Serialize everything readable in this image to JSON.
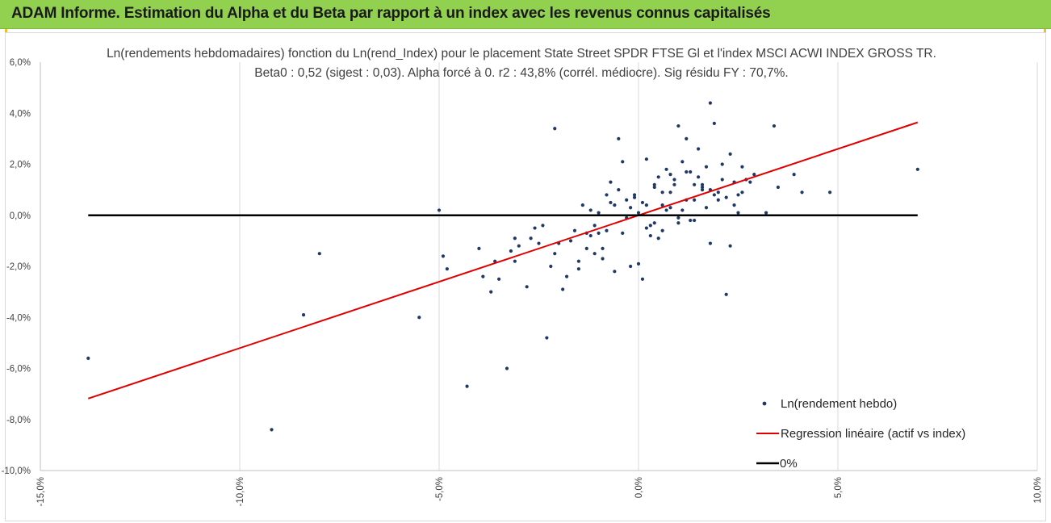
{
  "header": {
    "title": "ADAM Informe. Estimation du Alpha et du Beta par rapport à un index avec les revenus connus capitalisés"
  },
  "colors": {
    "banner": "#92d050",
    "points": "#1f3864",
    "regression": "#e00000",
    "zero_line": "#000000",
    "grid": "#d9d9d9"
  },
  "chart_data": {
    "type": "scatter",
    "title": [
      "Ln(rendements hebdomadaires) fonction du Ln(rend_Index) pour le placement State Street SPDR FTSE Gl et l'index MSCI  ACWI INDEX GROSS TR.",
      "Beta0 : 0,52 (sigest : 0,03).  Alpha forcé à 0. r2 : 43,8% (corrél. médiocre). Sig résidu FY : 70,7%."
    ],
    "xlabel": "",
    "ylabel": "",
    "xlim": [
      -0.15,
      0.1
    ],
    "ylim": [
      -0.1,
      0.06
    ],
    "x_ticks": [
      -0.15,
      -0.1,
      -0.05,
      0.0,
      0.05,
      0.1
    ],
    "x_tick_labels": [
      "-15,0%",
      "-10,0%",
      "-5,0%",
      "0,0%",
      "5,0%",
      "10,0%"
    ],
    "y_ticks": [
      -0.1,
      -0.08,
      -0.06,
      -0.04,
      -0.02,
      0.0,
      0.02,
      0.04,
      0.06
    ],
    "y_tick_labels": [
      "-10,0%",
      "-8,0%",
      "-6,0%",
      "-4,0%",
      "-2,0%",
      "0,0%",
      "2,0%",
      "4,0%",
      "6,0%"
    ],
    "grid": "vertical",
    "legend_position": "bottom-right",
    "legend": [
      "Ln(rendement hebdo)",
      "Regression linéaire (actif vs index)",
      "0%"
    ],
    "series": [
      {
        "name": "Ln(rendement hebdo)",
        "type": "scatter",
        "x": [
          -0.138,
          -0.092,
          -0.084,
          -0.08,
          -0.055,
          -0.05,
          -0.049,
          -0.048,
          -0.043,
          -0.04,
          -0.039,
          -0.037,
          -0.036,
          -0.035,
          -0.033,
          -0.032,
          -0.031,
          -0.03,
          -0.028,
          -0.027,
          -0.026,
          -0.025,
          -0.024,
          -0.023,
          -0.022,
          -0.021,
          -0.02,
          -0.019,
          -0.018,
          -0.017,
          -0.016,
          -0.015,
          -0.014,
          -0.013,
          -0.012,
          -0.011,
          -0.01,
          -0.009,
          -0.008,
          -0.007,
          -0.006,
          -0.005,
          -0.004,
          -0.003,
          -0.002,
          -0.001,
          0.0,
          0.001,
          0.002,
          0.003,
          0.004,
          0.005,
          0.006,
          0.007,
          0.008,
          0.009,
          0.01,
          0.011,
          0.012,
          0.013,
          0.014,
          0.015,
          0.016,
          0.017,
          0.018,
          0.019,
          0.02,
          0.021,
          0.022,
          0.023,
          0.024,
          0.025,
          0.026,
          0.027,
          0.028,
          0.029,
          0.032,
          0.034,
          0.035,
          0.039,
          0.041,
          0.048,
          0.07,
          -0.021,
          -0.031,
          -0.008,
          0.018,
          0.017,
          0.023,
          -0.005,
          0.012,
          0.01,
          -0.006,
          -0.004,
          0.007,
          0.014,
          0.022,
          0.001,
          0.003,
          -0.002,
          0.005,
          0.009,
          0.015,
          0.019,
          0.011,
          0.006,
          0.004,
          0.002,
          -0.001,
          0.008,
          0.013,
          0.016,
          0.02,
          -0.003,
          -0.007,
          -0.01,
          -0.012,
          0.024,
          0.026,
          0.0,
          0.002,
          0.004,
          0.006,
          0.008,
          0.01,
          0.012,
          0.014,
          0.016,
          0.018,
          -0.011,
          -0.013,
          -0.015,
          -0.009,
          0.021,
          0.025
        ],
        "y": [
          -0.056,
          -0.084,
          -0.039,
          -0.015,
          -0.04,
          0.002,
          -0.016,
          -0.021,
          -0.067,
          -0.013,
          -0.024,
          -0.03,
          -0.018,
          -0.025,
          -0.06,
          -0.014,
          -0.018,
          -0.012,
          -0.028,
          -0.009,
          -0.005,
          -0.011,
          -0.004,
          -0.048,
          -0.02,
          0.034,
          -0.011,
          -0.029,
          -0.024,
          -0.01,
          -0.006,
          -0.021,
          0.004,
          -0.013,
          -0.008,
          -0.004,
          0.001,
          -0.017,
          -0.006,
          0.013,
          -0.022,
          0.03,
          0.021,
          0.006,
          -0.02,
          0.008,
          -0.019,
          -0.025,
          0.022,
          -0.008,
          0.012,
          0.015,
          0.004,
          0.018,
          0.009,
          0.014,
          0.035,
          0.021,
          0.03,
          0.017,
          0.012,
          0.026,
          0.011,
          0.019,
          0.044,
          0.036,
          0.009,
          0.014,
          -0.031,
          0.024,
          0.004,
          0.001,
          0.019,
          0.014,
          0.013,
          0.016,
          0.001,
          0.035,
          0.011,
          0.016,
          0.009,
          0.009,
          0.018,
          -0.015,
          -0.009,
          0.008,
          -0.011,
          0.003,
          -0.012,
          0.01,
          0.006,
          -0.003,
          0.004,
          -0.007,
          0.002,
          -0.002,
          0.007,
          0.005,
          -0.004,
          0.003,
          -0.009,
          0.012,
          0.015,
          0.008,
          0.002,
          -0.006,
          0.011,
          -0.005,
          0.007,
          0.016,
          -0.002,
          0.01,
          0.006,
          -0.001,
          0.005,
          -0.007,
          0.002,
          0.013,
          0.009,
          0.001,
          0.004,
          -0.003,
          0.009,
          0.003,
          -0.001,
          0.017,
          0.006,
          0.012,
          0.01,
          -0.015,
          -0.007,
          -0.018,
          -0.013,
          0.02,
          0.008
        ]
      },
      {
        "name": "Regression linéaire (actif vs index)",
        "type": "line",
        "x": [
          -0.138,
          0.07
        ],
        "y": [
          -0.0718,
          0.0364
        ]
      },
      {
        "name": "0%",
        "type": "line",
        "x": [
          -0.138,
          0.07
        ],
        "y": [
          0.0,
          0.0
        ]
      }
    ]
  }
}
